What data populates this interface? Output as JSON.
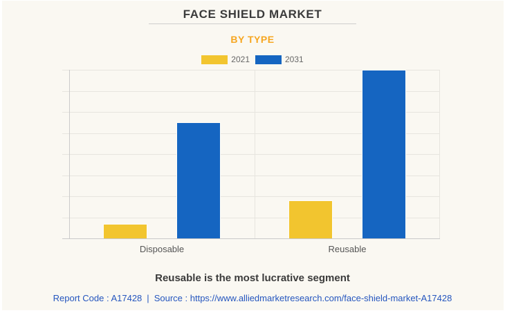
{
  "header": {
    "title": "FACE SHIELD MARKET",
    "subtitle": "BY TYPE"
  },
  "legend": [
    {
      "label": "2021",
      "color": "#F2C52F"
    },
    {
      "label": "2031",
      "color": "#1565C1"
    }
  ],
  "chart_data": {
    "type": "bar",
    "categories": [
      "Disposable",
      "Reusable"
    ],
    "series": [
      {
        "name": "2021",
        "color": "#F2C52F",
        "values": [
          0.7,
          1.8
        ]
      },
      {
        "name": "2031",
        "color": "#1565C1",
        "values": [
          5.5,
          8.0
        ]
      }
    ],
    "title": "FACE SHIELD MARKET",
    "subtitle": "BY TYPE",
    "xlabel": "",
    "ylabel": "",
    "ylim": [
      0,
      8
    ],
    "y_gridline_intervals": 8,
    "y_tick_labels_visible": false,
    "grid": true,
    "legend_position": "top"
  },
  "footer": {
    "highlight": "Reusable is the most lucrative segment",
    "report_code": "Report Code : A17428",
    "pipe": "|",
    "source_prefix": "Source :",
    "source_url": "https://www.alliedmarketresearch.com/face-shield-market-A17428"
  }
}
